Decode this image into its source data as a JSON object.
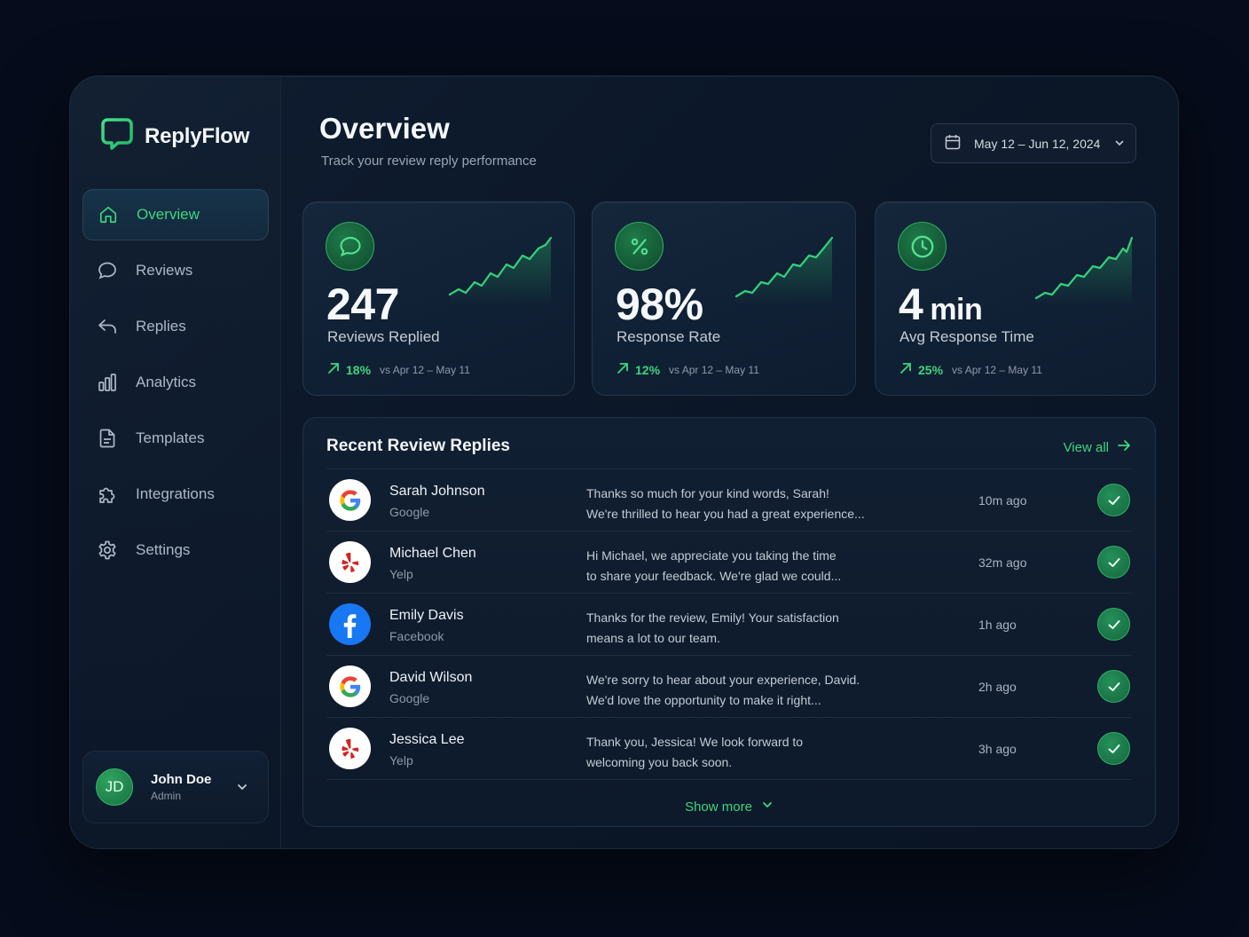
{
  "app": {
    "name": "ReplyFlow"
  },
  "colors": {
    "accent": "#3fd57d",
    "background": "#060c1b",
    "panel": "#0f1d30"
  },
  "nav": {
    "items": [
      {
        "label": "Overview",
        "icon": "home-icon",
        "active": true
      },
      {
        "label": "Reviews",
        "icon": "chat-bubble-icon"
      },
      {
        "label": "Replies",
        "icon": "reply-arrow-icon"
      },
      {
        "label": "Analytics",
        "icon": "bar-chart-icon"
      },
      {
        "label": "Templates",
        "icon": "document-icon"
      },
      {
        "label": "Integrations",
        "icon": "puzzle-icon"
      },
      {
        "label": "Settings",
        "icon": "gear-icon"
      }
    ]
  },
  "user": {
    "initials": "JD",
    "name": "John Doe",
    "role": "Admin"
  },
  "header": {
    "title": "Overview",
    "subtitle": "Track your review reply performance",
    "date_range": "May 12 – Jun 12, 2024"
  },
  "stats": [
    {
      "value": "247",
      "unit": "",
      "label": "Reviews Replied",
      "change": "18%",
      "compare": "vs Apr 12 – May 11",
      "icon": "chat-bubble-icon"
    },
    {
      "value": "98%",
      "unit": "",
      "label": "Response Rate",
      "change": "12%",
      "compare": "vs Apr 12 – May 11",
      "icon": "percent-icon"
    },
    {
      "value": "4",
      "unit": "min",
      "label": "Avg Response Time",
      "change": "25%",
      "compare": "vs Apr 12 – May 11",
      "icon": "clock-icon"
    }
  ],
  "recent": {
    "title": "Recent Review Replies",
    "view_all": "View all",
    "show_more": "Show more",
    "rows": [
      {
        "name": "Sarah Johnson",
        "source": "Google",
        "msg1": "Thanks so much for your kind words, Sarah!",
        "msg2": "We're thrilled to hear you had a great experience...",
        "time": "10m ago"
      },
      {
        "name": "Michael Chen",
        "source": "Yelp",
        "msg1": "Hi Michael, we appreciate you taking the time",
        "msg2": "to share your feedback. We're glad we could...",
        "time": "32m ago"
      },
      {
        "name": "Emily Davis",
        "source": "Facebook",
        "msg1": "Thanks for the review, Emily! Your satisfaction",
        "msg2": "means a lot to our team.",
        "time": "1h ago"
      },
      {
        "name": "David Wilson",
        "source": "Google",
        "msg1": "We're sorry to hear about your experience, David.",
        "msg2": "We'd love the opportunity to make it right...",
        "time": "2h ago"
      },
      {
        "name": "Jessica Lee",
        "source": "Yelp",
        "msg1": "Thank you, Jessica! We look forward to",
        "msg2": "welcoming you back soon.",
        "time": "3h ago"
      }
    ]
  }
}
